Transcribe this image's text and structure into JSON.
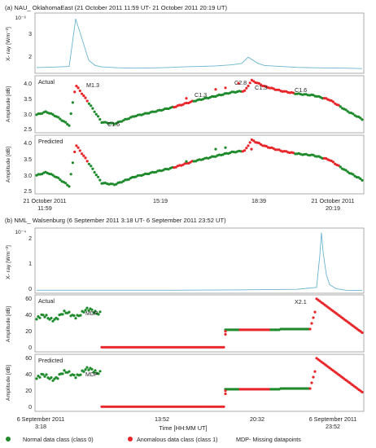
{
  "legend": {
    "normal_label": "Normal data class (class 0)",
    "anomalous_label": "Anomalous data class (class 1)",
    "mdp_label": "MDP- Missing datapoints",
    "normal_color": "#1e8a2c",
    "anomalous_color": "#e8262a"
  },
  "xray_color": "#6ab4cf",
  "chart_data": [
    {
      "type": "line",
      "panel_title": "(a) NAU_ OklahomaEast (21 October 2011 11:59 UT- 21 October 2011 20:19 UT)",
      "ylabel": "X- ray [Wm⁻²]",
      "yaxis_title_tick": "10⁻⁶",
      "yticks": [
        "3",
        "2"
      ],
      "x": [
        0,
        0.05,
        0.1,
        0.12,
        0.14,
        0.16,
        0.18,
        0.2,
        0.25,
        0.3,
        0.35,
        0.4,
        0.45,
        0.5,
        0.55,
        0.6,
        0.63,
        0.65,
        0.68,
        0.7,
        0.75,
        0.8,
        0.85,
        0.9,
        0.95,
        1.0
      ],
      "values": [
        1.25,
        1.27,
        1.3,
        3.6,
        2.6,
        1.6,
        1.35,
        1.28,
        1.24,
        1.22,
        1.23,
        1.25,
        1.28,
        1.3,
        1.33,
        1.38,
        1.45,
        1.75,
        1.45,
        1.35,
        1.3,
        1.26,
        1.24,
        1.23,
        1.22,
        1.2
      ],
      "ylim": [
        1.05,
        3.8
      ]
    },
    {
      "type": "scatter",
      "panel_label": "Actual",
      "ylabel": "Amplitude [dB]",
      "yticks": [
        "4.0",
        "3.5",
        "3.0",
        "2.5"
      ],
      "ylim": [
        2.35,
        4.15
      ],
      "annotations": [
        "M1.3",
        "C1.6",
        "C1.3",
        "C2.8",
        "C1.3",
        "C1.6"
      ]
    },
    {
      "type": "scatter",
      "panel_label": "Predicted",
      "ylabel": "Amplitude [dB]",
      "yticks": [
        "4.0",
        "3.5",
        "3.0",
        "2.5"
      ],
      "ylim": [
        2.35,
        4.15
      ],
      "xtick_labels": [
        "21 October 2011\n11:59",
        "15:19",
        "18:39",
        "21 October 2011\n20:19"
      ]
    },
    {
      "type": "line",
      "panel_title": "(b) NML_ Walsenburg (6 September 2011 3:18 UT- 6 September 2011 23:52 UT)",
      "ylabel": "X- ray [Wm⁻²]",
      "yaxis_title_tick": "10⁻⁴",
      "yticks": [
        "2",
        "1",
        "0"
      ],
      "x": [
        0,
        0.2,
        0.4,
        0.6,
        0.8,
        0.86,
        0.87,
        0.875,
        0.88,
        0.89,
        0.9,
        0.92,
        0.95,
        1.0
      ],
      "values": [
        0.05,
        0.05,
        0.05,
        0.06,
        0.08,
        0.15,
        1.3,
        2.1,
        1.4,
        0.6,
        0.25,
        0.1,
        0.05,
        0.04
      ],
      "ylim": [
        0,
        2.2
      ]
    },
    {
      "type": "scatter",
      "panel_label": "Actual",
      "ylabel": "Amplitude [dB]",
      "yticks": [
        "60",
        "40",
        "20",
        "0"
      ],
      "ylim": [
        -3,
        68
      ],
      "annotations": [
        "MDP",
        "X2.1"
      ]
    },
    {
      "type": "scatter",
      "panel_label": "Predicted",
      "ylabel": "Amplitude [dB]",
      "yticks": [
        "60",
        "40",
        "20",
        "0"
      ],
      "ylim": [
        -3,
        68
      ],
      "annotations": [
        "MDP"
      ],
      "xtick_labels": [
        "6 September 2011\n3:18",
        "13:52",
        "20:32",
        "6 September 2011\n23:52"
      ],
      "xlabel": "Time [HH:MM UT]"
    }
  ]
}
